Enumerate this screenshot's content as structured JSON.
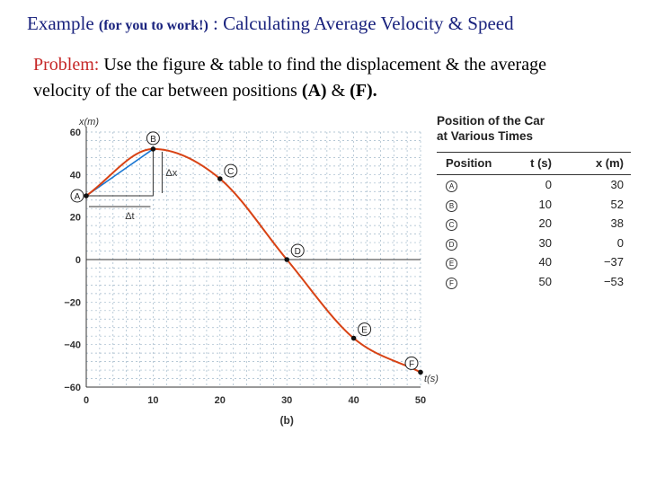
{
  "title": {
    "example": "Example",
    "note": "(for you to work!)",
    "rest": ": Calculating Average Velocity & Speed"
  },
  "problem": {
    "label": "Problem:",
    "text": "Use the figure & table to find the displacement & the average velocity of the car between positions",
    "pos_a": "(A)",
    "amp": "&",
    "pos_f": "(F)."
  },
  "chart_data": {
    "type": "line",
    "xlabel": "t(s)",
    "ylabel": "x(m)",
    "caption": "(b)",
    "xlim": [
      0,
      50
    ],
    "ylim": [
      -60,
      60
    ],
    "xticks": [
      "0",
      "10",
      "20",
      "30",
      "40",
      "50"
    ],
    "yticks": [
      "60",
      "40",
      "20",
      "0",
      "−20",
      "−40",
      "−60"
    ],
    "points": [
      {
        "label": "A",
        "t": 0,
        "x": 30
      },
      {
        "label": "B",
        "t": 10,
        "x": 52
      },
      {
        "label": "C",
        "t": 20,
        "x": 38
      },
      {
        "label": "D",
        "t": 30,
        "x": 0
      },
      {
        "label": "E",
        "t": 40,
        "x": -37
      },
      {
        "label": "F",
        "t": 50,
        "x": -53
      }
    ],
    "annotations": [
      "Δx",
      "Δt"
    ],
    "grid": true,
    "colors": {
      "curve": "#d84315",
      "secant": "#1976d2",
      "grid": "#9fb7c9"
    }
  },
  "table": {
    "caption_line1": "Position of the Car",
    "caption_line2": "at Various Times",
    "headers": [
      "Position",
      "t (s)",
      "x (m)"
    ],
    "rows": [
      {
        "pos": "A",
        "t": "0",
        "x": "30"
      },
      {
        "pos": "B",
        "t": "10",
        "x": "52"
      },
      {
        "pos": "C",
        "t": "20",
        "x": "38"
      },
      {
        "pos": "D",
        "t": "30",
        "x": "0"
      },
      {
        "pos": "E",
        "t": "40",
        "x": "−37"
      },
      {
        "pos": "F",
        "t": "50",
        "x": "−53"
      }
    ]
  }
}
